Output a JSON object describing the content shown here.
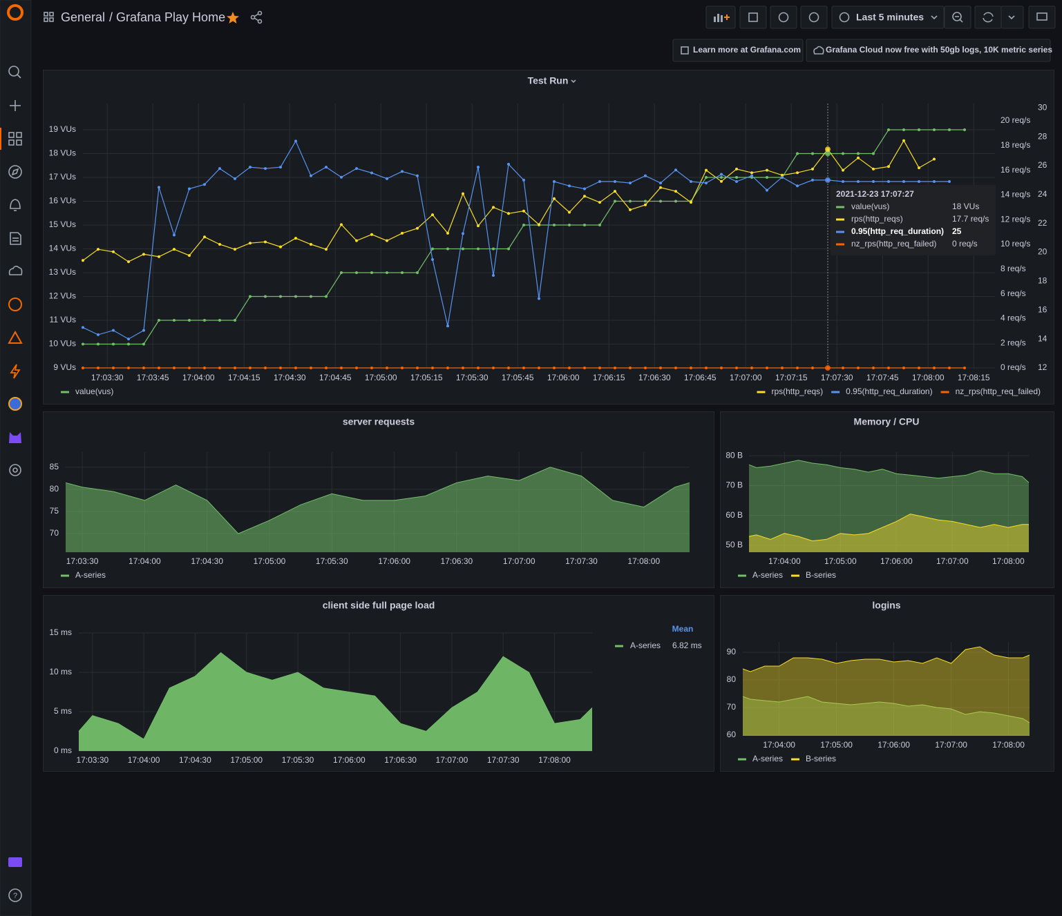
{
  "header": {
    "folder": "General",
    "title": "/ Grafana Play Home",
    "time_range": "Last 5 minutes",
    "links": [
      "Learn more at Grafana.com",
      "Grafana Cloud now free with 50gb logs, 10K metric series"
    ]
  },
  "chart_data": [
    {
      "type": "line",
      "title": "Test Run",
      "x": [
        "17:03:22",
        "17:03:27",
        "17:03:32",
        "17:03:37",
        "17:03:42",
        "17:03:47",
        "17:03:52",
        "17:03:57",
        "17:04:02",
        "17:04:07",
        "17:04:12",
        "17:04:17",
        "17:04:22",
        "17:04:27",
        "17:04:32",
        "17:04:37",
        "17:04:42",
        "17:04:47",
        "17:04:52",
        "17:04:57",
        "17:05:02",
        "17:05:07",
        "17:05:12",
        "17:05:17",
        "17:05:22",
        "17:05:27",
        "17:05:32",
        "17:05:37",
        "17:05:42",
        "17:05:47",
        "17:05:52",
        "17:05:57",
        "17:06:02",
        "17:06:07",
        "17:06:12",
        "17:06:17",
        "17:06:22",
        "17:06:27",
        "17:06:32",
        "17:06:37",
        "17:06:42",
        "17:06:47",
        "17:06:52",
        "17:06:57",
        "17:07:02",
        "17:07:07",
        "17:07:12",
        "17:07:17",
        "17:07:22",
        "17:07:27",
        "17:07:32",
        "17:07:37",
        "17:07:42",
        "17:07:47",
        "17:07:52",
        "17:07:57",
        "17:08:02",
        "17:08:07",
        "17:08:12"
      ],
      "xlim": [
        "17:03:22",
        "17:08:22"
      ],
      "xticks": [
        "17:03:30",
        "17:03:45",
        "17:04:00",
        "17:04:15",
        "17:04:30",
        "17:04:45",
        "17:05:00",
        "17:05:15",
        "17:05:30",
        "17:05:45",
        "17:06:00",
        "17:06:15",
        "17:06:30",
        "17:06:45",
        "17:07:00",
        "17:07:15",
        "17:07:30",
        "17:07:45",
        "17:08:00",
        "17:08:15"
      ],
      "ylim": [
        9,
        20.1
      ],
      "yticks": [
        {
          "value": 9,
          "label": "9 VUs"
        },
        {
          "value": 10,
          "label": "10 VUs"
        },
        {
          "value": 11,
          "label": "11 VUs"
        },
        {
          "value": 12,
          "label": "12 VUs"
        },
        {
          "value": 13,
          "label": "13 VUs"
        },
        {
          "value": 14,
          "label": "14 VUs"
        },
        {
          "value": 15,
          "label": "15 VUs"
        },
        {
          "value": 16,
          "label": "16 VUs"
        },
        {
          "value": 17,
          "label": "17 VUs"
        },
        {
          "value": 18,
          "label": "18 VUs"
        },
        {
          "value": 19,
          "label": "19 VUs"
        }
      ],
      "y2lim": [
        0,
        21.4
      ],
      "y2ticks": [
        {
          "value": 0,
          "label": "0 req/s"
        },
        {
          "value": 2,
          "label": "2 req/s"
        },
        {
          "value": 4,
          "label": "4 req/s"
        },
        {
          "value": 6,
          "label": "6 req/s"
        },
        {
          "value": 8,
          "label": "8 req/s"
        },
        {
          "value": 10,
          "label": "10 req/s"
        },
        {
          "value": 12,
          "label": "12 req/s"
        },
        {
          "value": 14,
          "label": "14 req/s"
        },
        {
          "value": 16,
          "label": "16 req/s"
        },
        {
          "value": 18,
          "label": "18 req/s"
        },
        {
          "value": 20,
          "label": "20 req/s"
        }
      ],
      "y3lim": [
        12,
        30.3
      ],
      "y3ticks": [
        12,
        14,
        16,
        18,
        20,
        22,
        24,
        26,
        28,
        30
      ],
      "grid": true,
      "series": [
        {
          "name": "value(vus)",
          "color": "#73bf69",
          "values": [
            10,
            10,
            10,
            10,
            10,
            11,
            11,
            11,
            11,
            11,
            11,
            12,
            12,
            12,
            12,
            12,
            12,
            13,
            13,
            13,
            13,
            13,
            13,
            14,
            14,
            14,
            14,
            14,
            14,
            15,
            15,
            15,
            15,
            15,
            15,
            16,
            16,
            16,
            16,
            16,
            16,
            17,
            17,
            17,
            17,
            17,
            17,
            18,
            18,
            18,
            18,
            18,
            18,
            19,
            19,
            19,
            19,
            19,
            19
          ]
        },
        {
          "name": "rps(http_reqs)",
          "color": "#fade2a",
          "axis": "y2",
          "values": [
            8.7,
            9.6,
            9.4,
            8.6,
            9.2,
            9.0,
            9.6,
            9.1,
            10.6,
            10.0,
            9.6,
            10.1,
            10.2,
            9.8,
            10.5,
            10.0,
            9.6,
            11.6,
            10.3,
            10.8,
            10.3,
            10.9,
            11.3,
            12.4,
            10.9,
            14.1,
            11.5,
            13.0,
            12.5,
            12.7,
            11.6,
            13.7,
            12.6,
            13.9,
            13.4,
            14.3,
            12.8,
            13.2,
            14.6,
            14.3,
            13.4,
            16.0,
            15.1,
            16.1,
            15.8,
            16.0,
            15.6,
            15.8,
            16.1,
            17.7,
            16.0,
            17.0,
            16.1,
            16.3,
            18.4,
            16.2,
            16.9,
            null,
            null
          ]
        },
        {
          "name": "0.95(http_req_duration)",
          "color": "#5794f2",
          "axis": "y3",
          "values": [
            14.8,
            14.3,
            14.6,
            14.0,
            14.6,
            24.5,
            21.2,
            24.4,
            24.7,
            25.8,
            25.1,
            25.9,
            25.8,
            25.9,
            27.7,
            25.3,
            25.9,
            25.2,
            25.8,
            25.5,
            25.1,
            25.6,
            25.3,
            19.5,
            14.9,
            21.3,
            25.9,
            18.4,
            26.1,
            25.0,
            16.8,
            24.9,
            24.6,
            24.4,
            24.9,
            24.9,
            24.8,
            25.3,
            24.8,
            25.7,
            24.9,
            24.8,
            25.4,
            24.9,
            25.3,
            24.3,
            25.2,
            24.6,
            25.0,
            25.0,
            24.9,
            24.9,
            24.9,
            24.9,
            24.9,
            24.9,
            24.9,
            24.9,
            null
          ]
        },
        {
          "name": "nz_rps(http_req_failed)",
          "color": "#fa6400",
          "axis": "y2",
          "values": [
            0,
            0,
            0,
            0,
            0,
            0,
            0,
            0,
            0,
            0,
            0,
            0,
            0,
            0,
            0,
            0,
            0,
            0,
            0,
            0,
            0,
            0,
            0,
            0,
            0,
            0,
            0,
            0,
            0,
            0,
            0,
            0,
            0,
            0,
            0,
            0,
            0,
            0,
            0,
            0,
            0,
            0,
            0,
            0,
            0,
            0,
            0,
            0,
            0,
            0,
            0,
            0,
            0,
            0,
            0,
            0,
            0,
            0,
            0
          ]
        }
      ],
      "tooltip": {
        "title": "2021-12-23 17:07:27",
        "values": [
          "18 VUs",
          "17.7 req/s",
          "25",
          "0 req/s"
        ]
      }
    },
    {
      "type": "area",
      "title": "server requests",
      "x": [
        "17:03:22",
        "17:03:30",
        "17:03:45",
        "17:04:00",
        "17:04:15",
        "17:04:30",
        "17:04:45",
        "17:05:00",
        "17:05:15",
        "17:05:30",
        "17:05:45",
        "17:06:00",
        "17:06:15",
        "17:06:30",
        "17:06:45",
        "17:07:00",
        "17:07:15",
        "17:07:30",
        "17:07:45",
        "17:08:00",
        "17:08:15",
        "17:08:22"
      ],
      "xlim": [
        "17:03:22",
        "17:08:22"
      ],
      "xticks": [
        "17:03:30",
        "17:04:00",
        "17:04:30",
        "17:05:00",
        "17:05:30",
        "17:06:00",
        "17:06:30",
        "17:07:00",
        "17:07:30",
        "17:08:00"
      ],
      "ylim": [
        65.8,
        88.4
      ],
      "yticks": [
        70,
        75,
        80,
        85
      ],
      "grid": true,
      "fill_opacity": 0.55,
      "series": [
        {
          "name": "A-series",
          "color": "#73bf69",
          "values": [
            81.5,
            80.5,
            79.5,
            77.5,
            81,
            77.5,
            70,
            73,
            76.5,
            79,
            77.5,
            77.5,
            78.5,
            81.5,
            83,
            82,
            85,
            83,
            77.5,
            76,
            80.5,
            81.5
          ]
        }
      ]
    },
    {
      "type": "area",
      "title": "Memory / CPU",
      "x": [
        "17:03:22",
        "17:03:30",
        "17:03:45",
        "17:04:00",
        "17:04:15",
        "17:04:30",
        "17:04:45",
        "17:05:00",
        "17:05:15",
        "17:05:30",
        "17:05:45",
        "17:06:00",
        "17:06:15",
        "17:06:30",
        "17:06:45",
        "17:07:00",
        "17:07:15",
        "17:07:30",
        "17:07:45",
        "17:08:00",
        "17:08:15",
        "17:08:22"
      ],
      "xlim": [
        "17:03:22",
        "17:08:22"
      ],
      "xticks": [
        "17:04:00",
        "17:05:00",
        "17:06:00",
        "17:07:00",
        "17:08:00"
      ],
      "ylim": [
        47.7,
        81.2
      ],
      "yticks": [
        {
          "value": 50,
          "label": "50 B"
        },
        {
          "value": 60,
          "label": "60 B"
        },
        {
          "value": 70,
          "label": "70 B"
        },
        {
          "value": 80,
          "label": "80 B"
        }
      ],
      "grid": true,
      "fill_opacity": 0.45,
      "series": [
        {
          "name": "A-series",
          "color": "#73bf69",
          "values": [
            77,
            76,
            76.5,
            77.5,
            78.5,
            77.5,
            77,
            76,
            75.5,
            74.5,
            75.5,
            74,
            73.5,
            73,
            72.5,
            73,
            73.5,
            75,
            74,
            74,
            73,
            71
          ]
        },
        {
          "name": "B-series",
          "color": "#fade2a",
          "values": [
            53,
            53.5,
            52,
            54,
            53,
            51.5,
            52,
            54,
            53.5,
            54,
            56,
            58,
            60.5,
            59.5,
            58.5,
            58,
            57,
            56,
            57,
            56,
            57,
            57
          ]
        }
      ]
    },
    {
      "type": "area",
      "title": "client side full page load",
      "x": [
        "17:03:22",
        "17:03:30",
        "17:03:45",
        "17:04:00",
        "17:04:15",
        "17:04:30",
        "17:04:45",
        "17:05:00",
        "17:05:15",
        "17:05:30",
        "17:05:45",
        "17:06:00",
        "17:06:15",
        "17:06:30",
        "17:06:45",
        "17:07:00",
        "17:07:15",
        "17:07:30",
        "17:07:45",
        "17:08:00",
        "17:08:15",
        "17:08:22"
      ],
      "xlim": [
        "17:03:22",
        "17:08:22"
      ],
      "xticks": [
        "17:03:30",
        "17:04:00",
        "17:04:30",
        "17:05:00",
        "17:05:30",
        "17:06:00",
        "17:06:30",
        "17:07:00",
        "17:07:30",
        "17:08:00"
      ],
      "ylim": [
        0,
        15
      ],
      "yticks": [
        {
          "value": 0,
          "label": "0 ms"
        },
        {
          "value": 5,
          "label": "5 ms"
        },
        {
          "value": 10,
          "label": "10 ms"
        },
        {
          "value": 15,
          "label": "15 ms"
        }
      ],
      "grid": true,
      "fill_opacity": 0.95,
      "legend_header": "Mean",
      "series": [
        {
          "name": "A-series",
          "color": "#73bf69",
          "legend_value": "6.82 ms",
          "values": [
            2.5,
            4.5,
            3.5,
            1.5,
            8,
            9.5,
            12.5,
            10,
            9,
            10,
            8,
            7.5,
            7,
            3.5,
            2.5,
            5.5,
            7.5,
            12,
            10,
            3.5,
            4,
            5.5
          ]
        }
      ]
    },
    {
      "type": "area",
      "title": "logins",
      "x": [
        "17:03:22",
        "17:03:30",
        "17:03:45",
        "17:04:00",
        "17:04:15",
        "17:04:30",
        "17:04:45",
        "17:05:00",
        "17:05:15",
        "17:05:30",
        "17:05:45",
        "17:06:00",
        "17:06:15",
        "17:06:30",
        "17:06:45",
        "17:07:00",
        "17:07:15",
        "17:07:30",
        "17:07:45",
        "17:08:00",
        "17:08:15",
        "17:08:22"
      ],
      "xlim": [
        "17:03:22",
        "17:08:22"
      ],
      "xticks": [
        "17:04:00",
        "17:05:00",
        "17:06:00",
        "17:07:00",
        "17:08:00"
      ],
      "ylim": [
        59.75,
        93.75
      ],
      "yticks": [
        60,
        70,
        80,
        90
      ],
      "grid": true,
      "fill_opacity": 0.4,
      "series": [
        {
          "name": "A-series",
          "color": "#73bf69",
          "values": [
            74,
            73,
            72.5,
            72,
            73,
            74,
            72,
            71.5,
            71,
            71.5,
            72,
            71.5,
            70.5,
            71,
            70,
            69.5,
            67.5,
            68.5,
            68,
            67,
            66,
            64.5
          ]
        },
        {
          "name": "B-series",
          "color": "#fade2a",
          "values": [
            84,
            83,
            85,
            85,
            88,
            88,
            87.5,
            86,
            87,
            87.5,
            87.5,
            86.5,
            87,
            86,
            88,
            86,
            91,
            92,
            89,
            88,
            88,
            89
          ]
        }
      ]
    }
  ]
}
